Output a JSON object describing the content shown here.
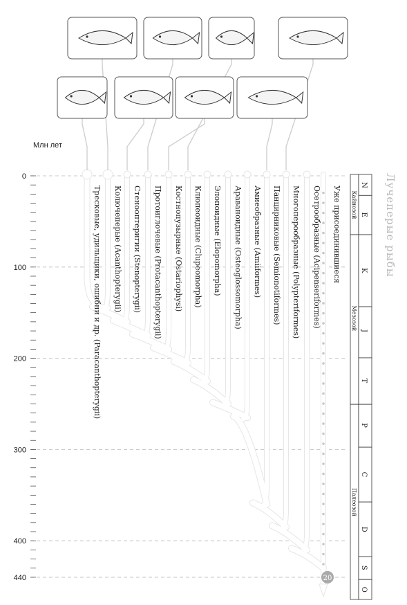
{
  "axis": {
    "title": "Млн лет",
    "ticks": [
      0,
      100,
      200,
      300,
      400,
      440
    ],
    "max": 440
  },
  "sidebar_title": "Лучеперые рыбы",
  "taxa": [
    {
      "label": "Тресковые, удильщики, ошибни и др. (Paracanthopterygii)",
      "branch_mya": 0,
      "icon": "flounder-icon"
    },
    {
      "label": "Колючеперые (Acanthopterygii)",
      "branch_mya": 145,
      "icon": "trout-icon"
    },
    {
      "label": "Стенооптеригии (Stenopterygii)",
      "branch_mya": 160,
      "icon": "pike-icon"
    },
    {
      "label": "Протоиглочевые (Protacanthopterygii)",
      "branch_mya": 175,
      "icon": "piranha-icon"
    },
    {
      "label": "Костнопузырные (Ostariophysi)",
      "branch_mya": 190,
      "icon": "herring-school-icon"
    },
    {
      "label": "Клюпеоидные (Clupeomorpha)",
      "branch_mya": 205,
      "icon": "moray-eel-icon"
    },
    {
      "label": "Элопоидные (Elopomorpha)",
      "branch_mya": 225,
      "icon": "gar-icon"
    },
    {
      "label": "Араваноидные (Osteoglossomorpha)",
      "branch_mya": 250,
      "icon": ""
    },
    {
      "label": "Амиеобразные (Amiiformes)",
      "branch_mya": 265,
      "icon": ""
    },
    {
      "label": "Панцирниковые (Semionotiformes)",
      "branch_mya": 360,
      "icon": ""
    },
    {
      "label": "Многоперообразные (Polypteriformes)",
      "branch_mya": 385,
      "icon": "sturgeon-icon"
    },
    {
      "label": "Осетрообразные (Acipenseriformes)",
      "branch_mya": 410,
      "icon": ""
    }
  ],
  "joined_label": "Уже присоединившиеся",
  "joined_count": "20",
  "periods": [
    {
      "code": "N",
      "start": 0,
      "end": 23
    },
    {
      "code": "E",
      "start": 23,
      "end": 66
    },
    {
      "code": "K",
      "start": 66,
      "end": 145
    },
    {
      "code": "J",
      "start": 145,
      "end": 201
    },
    {
      "code": "T",
      "start": 201,
      "end": 252
    },
    {
      "code": "P",
      "start": 252,
      "end": 299
    },
    {
      "code": "C",
      "start": 299,
      "end": 359
    },
    {
      "code": "D",
      "start": 359,
      "end": 419
    },
    {
      "code": "S",
      "start": 419,
      "end": 444
    },
    {
      "code": "O",
      "start": 444,
      "end": 485
    }
  ],
  "eras": [
    {
      "label": "Кайнозой",
      "start": 0,
      "end": 66
    },
    {
      "label": "Мезозой",
      "start": 66,
      "end": 252
    },
    {
      "label": "Палеозой",
      "start": 252,
      "end": 485
    }
  ],
  "colors": {
    "branch": "#ffffff",
    "branch_outline": "#e6e6e6",
    "grid": "#b8b8b8",
    "badge": "#aaaaaa",
    "sidebar": "#b9b9b9"
  }
}
